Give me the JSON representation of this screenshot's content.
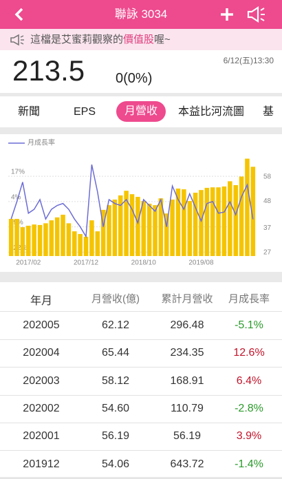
{
  "header": {
    "title": "聯詠 3034"
  },
  "notice": {
    "prefix": "這檔是艾蜜莉觀察的",
    "highlight": "價值股",
    "suffix": "喔~"
  },
  "quote": {
    "price": "213.5",
    "change": "0(0%)",
    "time": "6/12(五)13:30"
  },
  "tabs": [
    "新聞",
    "EPS",
    "月營收",
    "本益比河流圖",
    "基"
  ],
  "chart_data": {
    "type": "bar",
    "categories": [
      null,
      null,
      null,
      "2017/02",
      null,
      null,
      null,
      null,
      null,
      null,
      null,
      null,
      null,
      "2017/12",
      null,
      null,
      null,
      null,
      null,
      null,
      null,
      null,
      null,
      "2018/10",
      null,
      null,
      null,
      null,
      null,
      null,
      null,
      null,
      null,
      "2019/08",
      null,
      null,
      null,
      null,
      null,
      null,
      null,
      null,
      null
    ],
    "series": [
      {
        "color": "#f5c400",
        "axis": "y2",
        "values": [
          40.8,
          40.8,
          37.4,
          38,
          38.5,
          38.3,
          39,
          40.2,
          41.4,
          42.5,
          39,
          35.7,
          34.6,
          33.5,
          40.2,
          35.7,
          44.5,
          46.4,
          48.7,
          50.4,
          52.3,
          50.9,
          49.8,
          48.1,
          47,
          46.4,
          49.2,
          43,
          48.7,
          53.2,
          52.9,
          48.1,
          51.5,
          52.6,
          53.5,
          53.7,
          53.7,
          54.06,
          56.19,
          54.6,
          58.12,
          65.44,
          62.12
        ]
      },
      {
        "name": "月成長率",
        "type": "line",
        "color": "#6b6bd6",
        "values": [
          -5,
          4,
          14,
          -2,
          0,
          5,
          -5,
          0,
          2,
          3,
          0,
          -5,
          -9,
          -14,
          23,
          9,
          -9,
          5,
          3,
          2,
          5,
          0,
          -7,
          5,
          2,
          -1,
          5,
          -9,
          12,
          5,
          0,
          8,
          1,
          -6,
          3,
          4,
          -2,
          -1.4,
          3.9,
          -2.8,
          6.4,
          12.6,
          -5.1
        ]
      }
    ],
    "ylim": [
      -24,
      28
    ],
    "yticks": [
      {
        "value": 17,
        "label": "17%"
      },
      {
        "value": 4,
        "label": "4%"
      },
      {
        "value": -9,
        "label": "-9%"
      },
      {
        "value": -22,
        "label": "-22%"
      }
    ],
    "y2lim": [
      25.6,
      67
    ],
    "y2ticks": [
      27,
      37,
      48,
      58
    ],
    "grid": true
  },
  "table": {
    "header": [
      "年月",
      "月營收(億)",
      "累計月營收",
      "月成長率"
    ],
    "rows": [
      [
        "202005",
        "62.12",
        "296.48",
        "-5.1%"
      ],
      [
        "202004",
        "65.44",
        "234.35",
        "12.6%"
      ],
      [
        "202003",
        "58.12",
        "168.91",
        "6.4%"
      ],
      [
        "202002",
        "54.60",
        "110.79",
        "-2.8%"
      ],
      [
        "202001",
        "56.19",
        "56.19",
        "3.9%"
      ],
      [
        "201912",
        "54.06",
        "643.72",
        "-1.4%"
      ]
    ]
  }
}
